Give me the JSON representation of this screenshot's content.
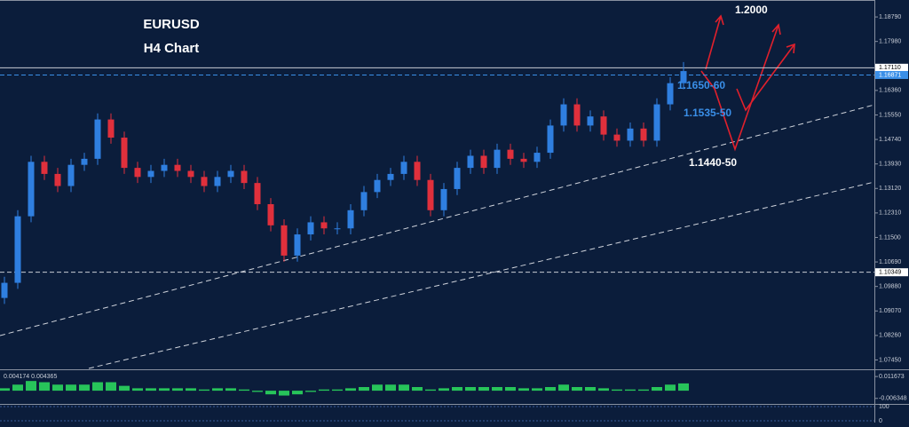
{
  "header": {
    "symbol": "EURUSD",
    "timeframe": "H4 Chart"
  },
  "chart_data": {
    "type": "candlestick",
    "open": [
      1.095,
      1.1,
      1.122,
      1.14,
      1.136,
      1.132,
      1.139,
      1.141,
      1.154,
      1.148,
      1.138,
      1.135,
      1.137,
      1.139,
      1.137,
      1.135,
      1.132,
      1.135,
      1.137,
      1.133,
      1.126,
      1.119,
      1.109,
      1.116,
      1.12,
      1.118,
      1.118,
      1.124,
      1.13,
      1.134,
      1.136,
      1.14,
      1.134,
      1.124,
      1.131,
      1.138,
      1.142,
      1.138,
      1.144,
      1.141,
      1.14,
      1.143,
      1.152,
      1.159,
      1.152,
      1.155,
      1.149,
      1.147,
      1.151,
      1.147,
      1.159,
      1.166
    ],
    "high": [
      1.102,
      1.124,
      1.142,
      1.142,
      1.138,
      1.141,
      1.143,
      1.156,
      1.156,
      1.15,
      1.14,
      1.139,
      1.141,
      1.141,
      1.139,
      1.137,
      1.137,
      1.139,
      1.139,
      1.135,
      1.128,
      1.121,
      1.118,
      1.122,
      1.122,
      1.12,
      1.126,
      1.132,
      1.136,
      1.138,
      1.142,
      1.142,
      1.136,
      1.133,
      1.14,
      1.144,
      1.144,
      1.146,
      1.146,
      1.143,
      1.145,
      1.154,
      1.161,
      1.161,
      1.157,
      1.157,
      1.151,
      1.153,
      1.153,
      1.161,
      1.168,
      1.173
    ],
    "low": [
      1.093,
      1.098,
      1.12,
      1.134,
      1.13,
      1.13,
      1.137,
      1.139,
      1.146,
      1.136,
      1.133,
      1.133,
      1.135,
      1.135,
      1.133,
      1.13,
      1.13,
      1.133,
      1.131,
      1.124,
      1.117,
      1.107,
      1.107,
      1.114,
      1.116,
      1.116,
      1.116,
      1.122,
      1.128,
      1.132,
      1.134,
      1.132,
      1.122,
      1.122,
      1.129,
      1.136,
      1.136,
      1.136,
      1.139,
      1.138,
      1.138,
      1.141,
      1.15,
      1.15,
      1.15,
      1.147,
      1.145,
      1.145,
      1.145,
      1.145,
      1.157,
      1.164
    ],
    "close": [
      1.1,
      1.122,
      1.14,
      1.136,
      1.132,
      1.139,
      1.141,
      1.154,
      1.148,
      1.138,
      1.135,
      1.137,
      1.139,
      1.137,
      1.135,
      1.132,
      1.135,
      1.137,
      1.133,
      1.126,
      1.119,
      1.109,
      1.116,
      1.12,
      1.118,
      1.118,
      1.124,
      1.13,
      1.134,
      1.136,
      1.14,
      1.134,
      1.124,
      1.131,
      1.138,
      1.142,
      1.138,
      1.144,
      1.141,
      1.14,
      1.143,
      1.152,
      1.159,
      1.152,
      1.155,
      1.149,
      1.147,
      1.151,
      1.147,
      1.159,
      1.166,
      1.17
    ],
    "up_color": "#2f7fe0",
    "down_color": "#e0303c",
    "ylim": [
      1.0717,
      1.1935
    ],
    "yticks": [
      {
        "value": 1.1879,
        "label": "1.18790"
      },
      {
        "value": 1.1798,
        "label": "1.17980"
      },
      {
        "value": 1.1636,
        "label": "1.16360"
      },
      {
        "value": 1.1555,
        "label": "1.15550"
      },
      {
        "value": 1.1474,
        "label": "1.14740"
      },
      {
        "value": 1.1393,
        "label": "1.13930"
      },
      {
        "value": 1.1312,
        "label": "1.13120"
      },
      {
        "value": 1.1231,
        "label": "1.12310"
      },
      {
        "value": 1.115,
        "label": "1.11500"
      },
      {
        "value": 1.1069,
        "label": "1.10690"
      },
      {
        "value": 1.0988,
        "label": "1.09880"
      },
      {
        "value": 1.0907,
        "label": "1.09070"
      },
      {
        "value": 1.0826,
        "label": "1.08260"
      },
      {
        "value": 1.0745,
        "label": "1.07450"
      }
    ],
    "price_levels": [
      {
        "value": 1.1711,
        "label": "1.17110",
        "color": "#c8ccd4",
        "style": "solid"
      },
      {
        "value": 1.16871,
        "label": "1.16871",
        "color": "#3a8fe8",
        "style": "dashed"
      },
      {
        "value": 1.10349,
        "label": "1.10349",
        "color": "#c8ccd4",
        "style": "dashed"
      }
    ],
    "annotations": [
      "1.2000",
      "1.1650-60",
      "1.1535-50",
      "1.1440-50"
    ],
    "indicator": {
      "type": "bar",
      "title": "0.004174 0.004365",
      "color": "#27c45a",
      "values": [
        0.002,
        0.005,
        0.008,
        0.007,
        0.005,
        0.005,
        0.005,
        0.007,
        0.007,
        0.004,
        0.002,
        0.002,
        0.002,
        0.002,
        0.002,
        0.001,
        0.002,
        0.002,
        0.001,
        -0.001,
        -0.003,
        -0.004,
        -0.003,
        -0.001,
        0.001,
        0.001,
        0.002,
        0.003,
        0.005,
        0.005,
        0.005,
        0.003,
        0.001,
        0.002,
        0.003,
        0.003,
        0.003,
        0.003,
        0.003,
        0.002,
        0.002,
        0.003,
        0.005,
        0.003,
        0.003,
        0.002,
        0.001,
        0.001,
        0.001,
        0.003,
        0.005,
        0.006
      ],
      "ylim": [
        -0.0109,
        0.0169
      ],
      "yticks": [
        0.011673,
        -0.006348
      ]
    },
    "oscillator": {
      "ylim": [
        0,
        100
      ],
      "yticks": [
        100,
        0
      ]
    }
  }
}
